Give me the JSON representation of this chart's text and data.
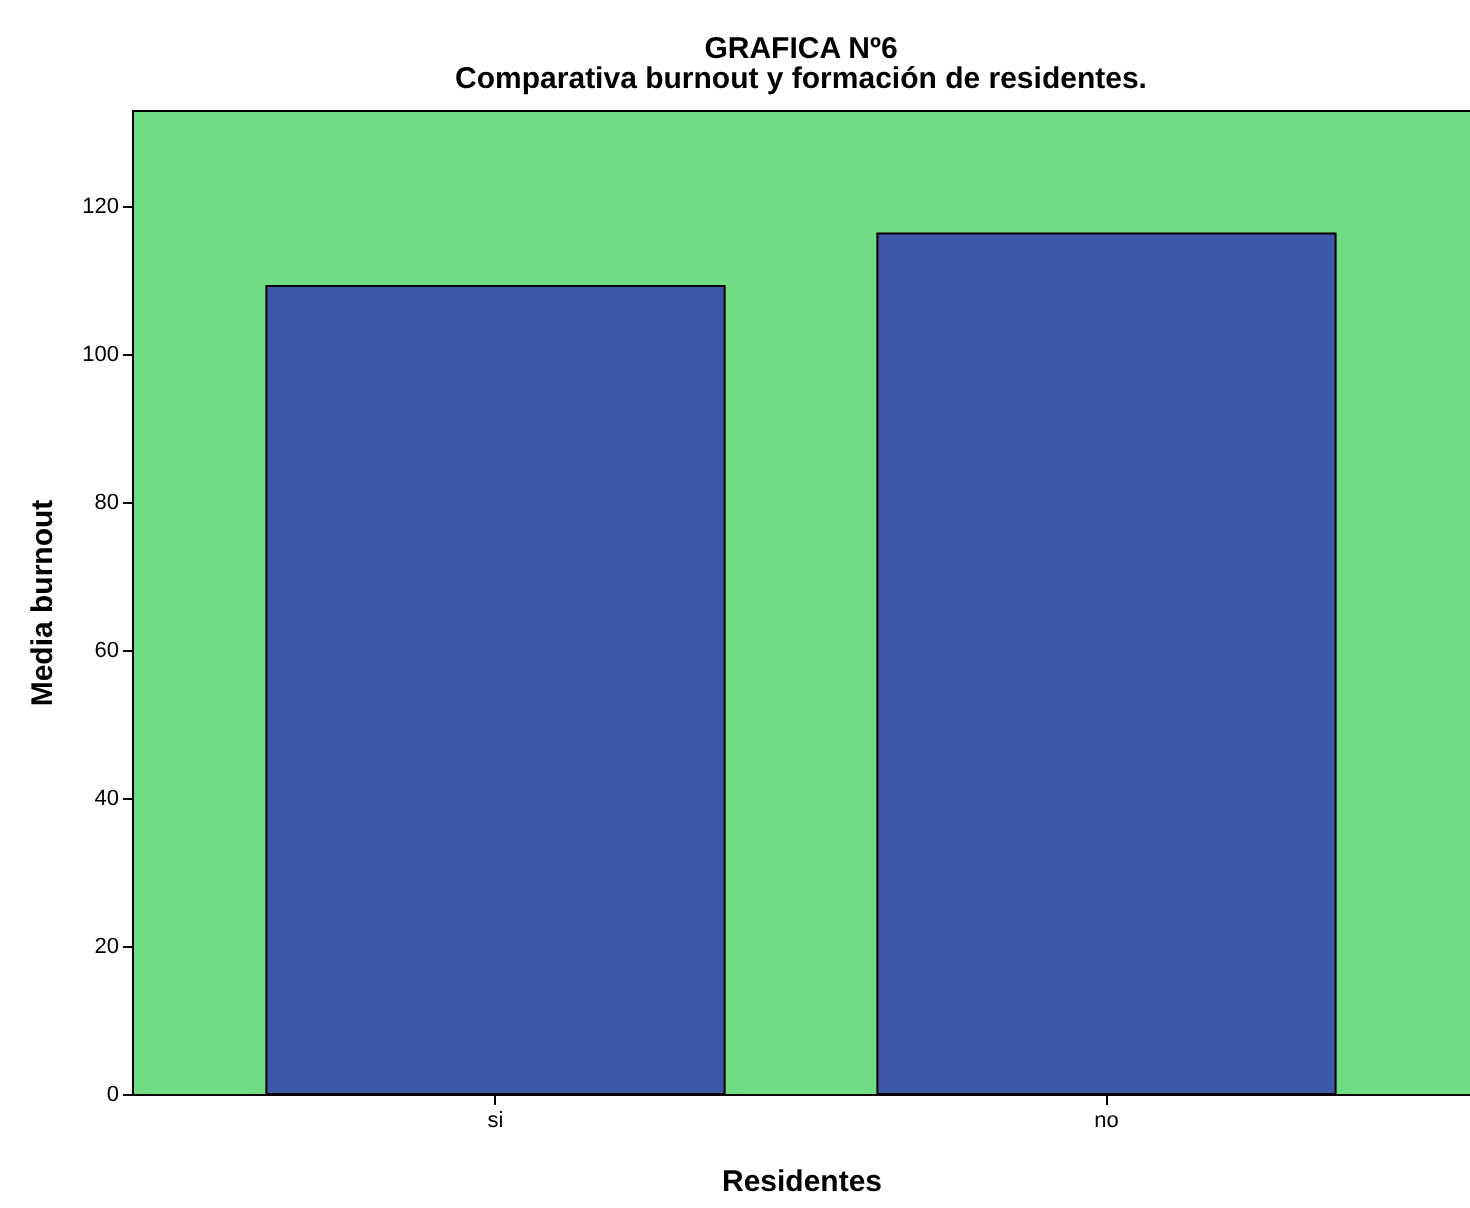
{
  "chart_data": {
    "type": "bar",
    "title": "GRAFICA Nº6",
    "subtitle": "Comparativa burnout y formación de residentes.",
    "xlabel": "Residentes",
    "ylabel": "Media burnout",
    "categories": [
      "si",
      "no"
    ],
    "values": [
      109.2,
      116.3
    ],
    "color": "#3d57a9",
    "ylim": [
      0,
      133
    ],
    "yticks": [
      0,
      20,
      40,
      60,
      80,
      100,
      120
    ],
    "grid": false
  }
}
